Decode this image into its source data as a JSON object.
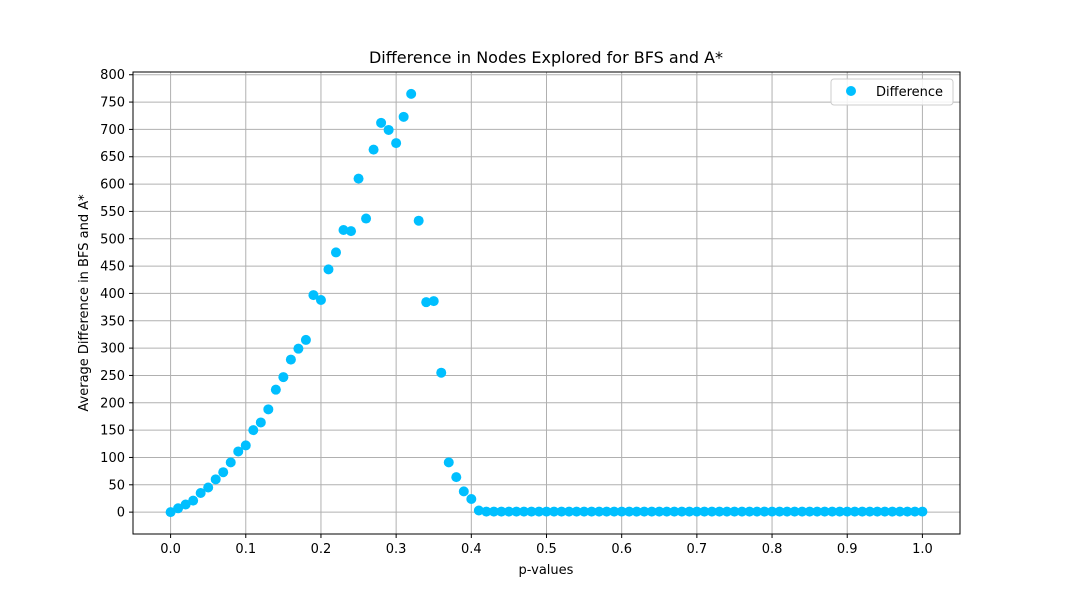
{
  "chart_data": {
    "type": "scatter",
    "title": "Difference in Nodes Explored for BFS and A*",
    "xlabel": "p-values",
    "ylabel": "Average Difference in BFS and A*",
    "xlim": [
      -0.05,
      1.05
    ],
    "ylim": [
      -40,
      805
    ],
    "xticks": [
      "0.0",
      "0.1",
      "0.2",
      "0.3",
      "0.4",
      "0.5",
      "0.6",
      "0.7",
      "0.8",
      "0.9",
      "1.0"
    ],
    "xtick_values": [
      0.0,
      0.1,
      0.2,
      0.3,
      0.4,
      0.5,
      0.6,
      0.7,
      0.8,
      0.9,
      1.0
    ],
    "yticks": [
      "0",
      "50",
      "100",
      "150",
      "200",
      "250",
      "300",
      "350",
      "400",
      "450",
      "500",
      "550",
      "600",
      "650",
      "700",
      "750",
      "800"
    ],
    "ytick_values": [
      0,
      50,
      100,
      150,
      200,
      250,
      300,
      350,
      400,
      450,
      500,
      550,
      600,
      650,
      700,
      750,
      800
    ],
    "grid": true,
    "legend_position": "top-right",
    "series": [
      {
        "name": "Difference",
        "color": "#00BFFF",
        "x": [
          0.0,
          0.01,
          0.02,
          0.03,
          0.04,
          0.05,
          0.06,
          0.07,
          0.08,
          0.09,
          0.1,
          0.11,
          0.12,
          0.13,
          0.14,
          0.15,
          0.16,
          0.17,
          0.18,
          0.19,
          0.2,
          0.21,
          0.22,
          0.23,
          0.24,
          0.25,
          0.26,
          0.27,
          0.28,
          0.29,
          0.3,
          0.31,
          0.32,
          0.33,
          0.34,
          0.35,
          0.36,
          0.37,
          0.38,
          0.39,
          0.4,
          0.41,
          0.42,
          0.43,
          0.44,
          0.45,
          0.46,
          0.47,
          0.48,
          0.49,
          0.5,
          0.51,
          0.52,
          0.53,
          0.54,
          0.55,
          0.56,
          0.57,
          0.58,
          0.59,
          0.6,
          0.61,
          0.62,
          0.63,
          0.64,
          0.65,
          0.66,
          0.67,
          0.68,
          0.69,
          0.7,
          0.71,
          0.72,
          0.73,
          0.74,
          0.75,
          0.76,
          0.77,
          0.78,
          0.79,
          0.8,
          0.81,
          0.82,
          0.83,
          0.84,
          0.85,
          0.86,
          0.87,
          0.88,
          0.89,
          0.9,
          0.91,
          0.92,
          0.93,
          0.94,
          0.95,
          0.96,
          0.97,
          0.98,
          0.99,
          1.0
        ],
        "y": [
          0,
          7,
          14,
          21,
          35,
          45,
          60,
          73,
          91,
          111,
          122,
          150,
          164,
          188,
          224,
          247,
          279,
          299,
          315,
          397,
          388,
          444,
          475,
          516,
          514,
          610,
          537,
          663,
          712,
          699,
          675,
          723,
          765,
          533,
          384,
          386,
          255,
          91,
          64,
          38,
          24,
          3,
          1,
          1,
          1,
          1,
          1,
          1,
          1,
          1,
          1,
          1,
          1,
          1,
          1,
          1,
          1,
          1,
          1,
          1,
          1,
          1,
          1,
          1,
          1,
          1,
          1,
          1,
          1,
          1,
          1,
          1,
          1,
          1,
          1,
          1,
          1,
          1,
          1,
          1,
          1,
          1,
          1,
          1,
          1,
          1,
          1,
          1,
          1,
          1,
          1,
          1,
          1,
          1,
          1,
          1,
          1,
          1,
          1,
          1,
          1
        ]
      }
    ]
  }
}
